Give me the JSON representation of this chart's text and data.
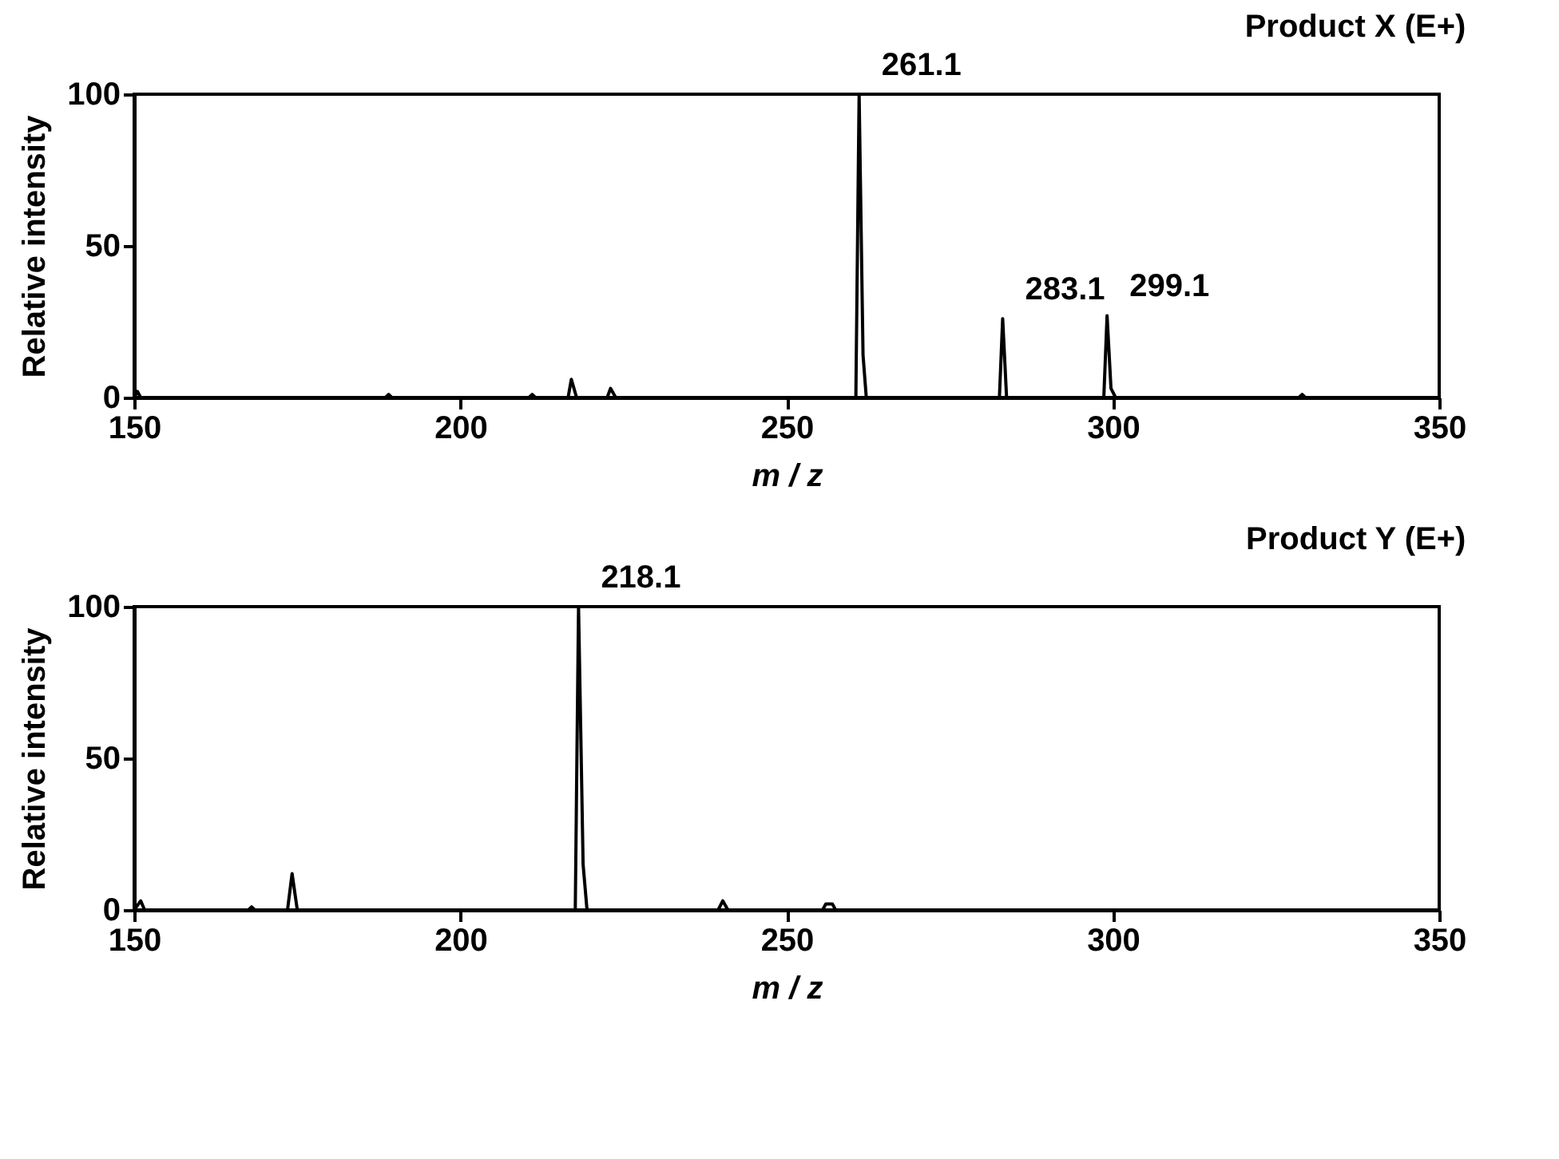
{
  "chart_data": [
    {
      "type": "line",
      "title": "Product X (E+)",
      "xlabel": "m / z",
      "ylabel": "Relative intensity",
      "xlim": [
        150,
        350
      ],
      "xticks": [
        150,
        200,
        250,
        300,
        350
      ],
      "ylim": [
        0,
        100
      ],
      "yticks": [
        0,
        50,
        100
      ],
      "grid": false,
      "marker": "none",
      "annotations": [
        {
          "text": "261.1",
          "x": 261.1,
          "y": 100
        },
        {
          "text": "283.1",
          "x": 283.1,
          "y": 26
        },
        {
          "text": "299.1",
          "x": 299.1,
          "y": 27
        }
      ],
      "series": [
        {
          "color": "#000000",
          "x": [
            150,
            150.5,
            151,
            188.5,
            189,
            189.5,
            210.5,
            211,
            211.5,
            216.5,
            217,
            217.8,
            222.5,
            223,
            223.8,
            260.6,
            261.1,
            261.7,
            262.2,
            282.6,
            283.1,
            283.7,
            298.6,
            299.1,
            299.7,
            300.4,
            328.5,
            329,
            329.5,
            350
          ],
          "values": [
            0,
            2,
            0,
            0,
            1,
            0,
            0,
            1,
            0,
            0,
            6,
            0,
            0,
            3,
            0,
            0,
            100,
            14,
            0,
            0,
            26,
            0,
            0,
            27,
            3,
            0,
            0,
            1,
            0,
            0
          ]
        }
      ]
    },
    {
      "type": "line",
      "title": "Product Y (E+)",
      "xlabel": "m / z",
      "ylabel": "Relative intensity",
      "xlim": [
        150,
        350
      ],
      "xticks": [
        150,
        200,
        250,
        300,
        350
      ],
      "ylim": [
        0,
        100
      ],
      "yticks": [
        0,
        50,
        100
      ],
      "grid": false,
      "marker": "none",
      "annotations": [
        {
          "text": "218.1",
          "x": 218.1,
          "y": 100
        }
      ],
      "series": [
        {
          "color": "#000000",
          "x": [
            150,
            151,
            151.6,
            167.5,
            168,
            168.5,
            173.5,
            174.2,
            175,
            217.6,
            218.1,
            218.8,
            219.4,
            239.5,
            240.2,
            241,
            255.5,
            256,
            257,
            257.5,
            350
          ],
          "values": [
            0,
            3,
            0,
            0,
            1,
            0,
            0,
            12,
            0,
            0,
            100,
            15,
            0,
            0,
            3,
            0,
            0,
            2,
            2,
            0,
            0
          ]
        }
      ]
    }
  ]
}
